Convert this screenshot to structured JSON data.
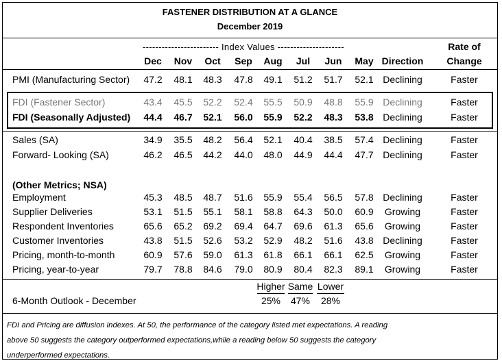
{
  "title": {
    "line1": "FASTENER DISTRIBUTION AT A GLANCE",
    "line2": "December 2019"
  },
  "header": {
    "index_values_band": "------------------------ Index Values ---------------------",
    "months": [
      "Dec",
      "Nov",
      "Oct",
      "Sep",
      "Aug",
      "Jul",
      "Jun",
      "May"
    ],
    "direction": "Direction",
    "rate_of": "Rate of",
    "change": "Change"
  },
  "rows": [
    {
      "label": "PMI (Manufacturing Sector)",
      "values": [
        "47.2",
        "48.1",
        "48.3",
        "47.8",
        "49.1",
        "51.2",
        "51.7",
        "52.1"
      ],
      "direction": "Declining",
      "rate": "Faster"
    },
    {
      "label": "FDI (Fastener Sector)",
      "values": [
        "43.4",
        "45.5",
        "52.2",
        "52.4",
        "55.5",
        "50.9",
        "48.8",
        "55.9"
      ],
      "direction": "Declining",
      "rate": "Faster"
    },
    {
      "label": "FDI (Seasonally Adjusted)",
      "values": [
        "44.4",
        "46.7",
        "52.1",
        "56.0",
        "55.9",
        "52.2",
        "48.3",
        "53.8"
      ],
      "direction": "Declining",
      "rate": "Faster"
    },
    {
      "label": "Sales (SA)",
      "values": [
        "34.9",
        "35.5",
        "48.2",
        "56.4",
        "52.1",
        "40.4",
        "38.5",
        "57.4"
      ],
      "direction": "Declining",
      "rate": "Faster"
    },
    {
      "label": "Forward- Looking (SA)",
      "values": [
        "46.2",
        "46.5",
        "44.2",
        "44.0",
        "48.0",
        "44.9",
        "44.4",
        "47.7"
      ],
      "direction": "Declining",
      "rate": "Faster"
    }
  ],
  "other_metrics_heading": "(Other Metrics; NSA)",
  "other_rows": [
    {
      "label": "Employment",
      "values": [
        "45.3",
        "48.5",
        "48.7",
        "51.6",
        "55.9",
        "55.4",
        "56.5",
        "57.8"
      ],
      "direction": "Declining",
      "rate": "Faster"
    },
    {
      "label": "Supplier Deliveries",
      "values": [
        "53.1",
        "51.5",
        "55.1",
        "58.1",
        "58.8",
        "64.3",
        "50.0",
        "60.9"
      ],
      "direction": "Growing",
      "rate": "Faster"
    },
    {
      "label": "Respondent Inventories",
      "values": [
        "65.6",
        "65.2",
        "69.2",
        "69.4",
        "64.7",
        "69.6",
        "61.3",
        "65.6"
      ],
      "direction": "Growing",
      "rate": "Faster"
    },
    {
      "label": "Customer Inventories",
      "values": [
        "43.8",
        "51.5",
        "52.6",
        "53.2",
        "52.9",
        "48.2",
        "51.6",
        "43.8"
      ],
      "direction": "Declining",
      "rate": "Faster"
    },
    {
      "label": "Pricing, month-to-month",
      "values": [
        "60.9",
        "57.6",
        "59.0",
        "61.3",
        "61.8",
        "66.1",
        "66.1",
        "62.5"
      ],
      "direction": "Growing",
      "rate": "Faster"
    },
    {
      "label": "Pricing, year-to-year",
      "values": [
        "79.7",
        "78.8",
        "84.6",
        "79.0",
        "80.9",
        "80.4",
        "82.3",
        "89.1"
      ],
      "direction": "Growing",
      "rate": "Faster"
    }
  ],
  "outlook": {
    "label": "6-Month Outlook - December",
    "headers": [
      "Higher",
      "Same",
      "Lower"
    ],
    "values": [
      "25%",
      "47%",
      "28%"
    ]
  },
  "footnote": {
    "line1": "FDI and Pricing are diffusion indexes.  At 50, the performance of the category listed met expectations. A reading",
    "line2": "above 50 suggests the category outperformed expectations,while a reading below 50 suggests the category",
    "line3": "underperformed expectations."
  },
  "colors": {
    "grey_text": "#777777",
    "border": "#000000"
  }
}
